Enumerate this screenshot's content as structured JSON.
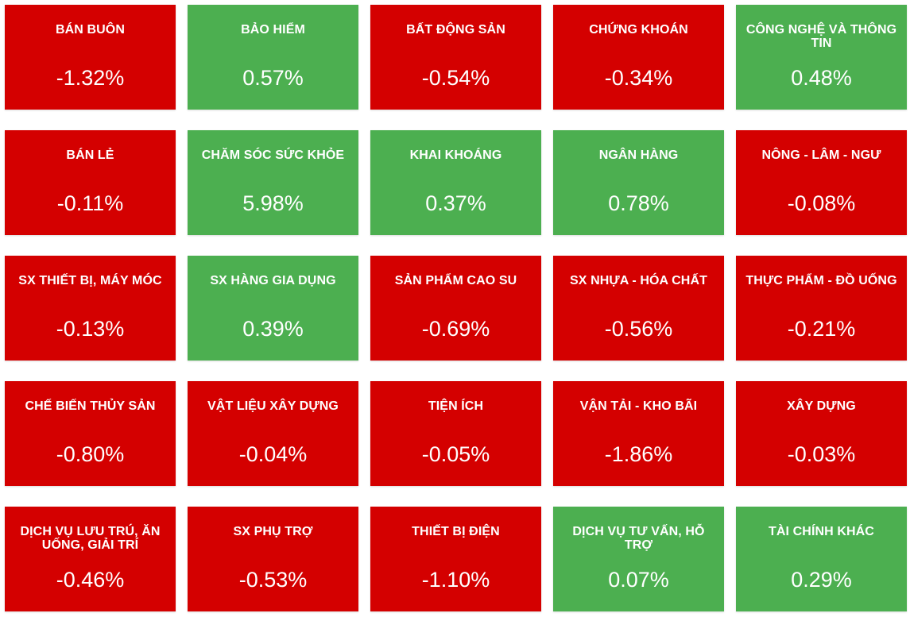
{
  "colors": {
    "negative": "#d40000",
    "positive": "#4caf50",
    "text": "#ffffff"
  },
  "tiles": [
    {
      "name": "BÁN BUÔN",
      "value": "-1.32%",
      "trend": "down"
    },
    {
      "name": "BẢO HIỂM",
      "value": "0.57%",
      "trend": "up"
    },
    {
      "name": "BẤT ĐỘNG SẢN",
      "value": "-0.54%",
      "trend": "down"
    },
    {
      "name": "CHỨNG KHOÁN",
      "value": "-0.34%",
      "trend": "down"
    },
    {
      "name": "CÔNG NGHỆ VÀ THÔNG TIN",
      "value": "0.48%",
      "trend": "up"
    },
    {
      "name": "BÁN LẺ",
      "value": "-0.11%",
      "trend": "down"
    },
    {
      "name": "CHĂM SÓC SỨC KHỎE",
      "value": "5.98%",
      "trend": "up"
    },
    {
      "name": "KHAI KHOÁNG",
      "value": "0.37%",
      "trend": "up"
    },
    {
      "name": "NGÂN HÀNG",
      "value": "0.78%",
      "trend": "up"
    },
    {
      "name": "NÔNG - LÂM - NGƯ",
      "value": "-0.08%",
      "trend": "down"
    },
    {
      "name": "SX THIẾT BỊ, MÁY MÓC",
      "value": "-0.13%",
      "trend": "down"
    },
    {
      "name": "SX HÀNG GIA DỤNG",
      "value": "0.39%",
      "trend": "up"
    },
    {
      "name": "SẢN PHẨM CAO SU",
      "value": "-0.69%",
      "trend": "down"
    },
    {
      "name": "SX NHỰA - HÓA CHẤT",
      "value": "-0.56%",
      "trend": "down"
    },
    {
      "name": "THỰC PHẨM - ĐỒ UỐNG",
      "value": "-0.21%",
      "trend": "down"
    },
    {
      "name": "CHẾ BIẾN THỦY SẢN",
      "value": "-0.80%",
      "trend": "down"
    },
    {
      "name": "VẬT LIỆU XÂY DỰNG",
      "value": "-0.04%",
      "trend": "down"
    },
    {
      "name": "TIỆN ÍCH",
      "value": "-0.05%",
      "trend": "down"
    },
    {
      "name": "VẬN TẢI - KHO BÃI",
      "value": "-1.86%",
      "trend": "down"
    },
    {
      "name": "XÂY DỰNG",
      "value": "-0.03%",
      "trend": "down"
    },
    {
      "name": "DỊCH VỤ LƯU TRÚ, ĂN UỐNG, GIẢI TRÍ",
      "value": "-0.46%",
      "trend": "down"
    },
    {
      "name": "SX PHỤ TRỢ",
      "value": "-0.53%",
      "trend": "down"
    },
    {
      "name": "THIẾT BỊ ĐIỆN",
      "value": "-1.10%",
      "trend": "down"
    },
    {
      "name": "DỊCH VỤ TƯ VẤN, HỖ TRỢ",
      "value": "0.07%",
      "trend": "up"
    },
    {
      "name": "TÀI CHÍNH KHÁC",
      "value": "0.29%",
      "trend": "up"
    }
  ]
}
